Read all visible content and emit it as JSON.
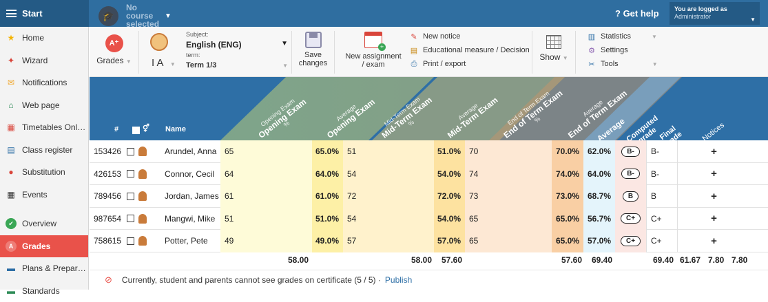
{
  "topbar": {
    "start_label": "Start",
    "course_label": "No course selected",
    "get_help": "Get help",
    "logged_in_label": "You are logged as",
    "logged_in_user": "Administrator"
  },
  "sidebar": {
    "items": [
      {
        "label": "Home",
        "icon": "star-icon",
        "color": "#f4b400"
      },
      {
        "label": "Wizard",
        "icon": "wizard-icon",
        "color": "#d9453b"
      },
      {
        "label": "Notifications",
        "icon": "envelope-icon",
        "color": "#f0a830"
      },
      {
        "label": "Web page",
        "icon": "home-icon",
        "color": "#2e8b57"
      },
      {
        "label": "Timetables Onl…",
        "icon": "timetable-icon",
        "color": "#d9453b"
      },
      {
        "label": "Class register",
        "icon": "register-icon",
        "color": "#2e6fa6"
      },
      {
        "label": "Substitution",
        "icon": "substitution-icon",
        "color": "#d9453b"
      },
      {
        "label": "Events",
        "icon": "calendar-icon",
        "color": "#333"
      },
      {
        "label": "Overview",
        "icon": "check-circle-icon",
        "color": "#3aa655"
      },
      {
        "label": "Grades",
        "icon": "grades-icon",
        "color": "#ffffff"
      },
      {
        "label": "Plans & Prepar…",
        "icon": "plans-icon",
        "color": "#2e6fa6"
      },
      {
        "label": "Standards",
        "icon": "standards-icon",
        "color": "#2e8b57"
      }
    ],
    "active_index": 9
  },
  "toolbar": {
    "grades_label": "Grades",
    "subject_caption": "Subject:",
    "subject_value": "English (ENG)",
    "class_value": "I A",
    "term_caption": "term:",
    "term_value": "Term 1/3",
    "save_label": "Save changes",
    "new_assignment_label": "New assignment / exam",
    "new_notice": "New notice",
    "educational_measure": "Educational measure / Decision",
    "print_export": "Print / export",
    "show_label": "Show",
    "statistics": "Statistics",
    "settings": "Settings",
    "tools": "Tools"
  },
  "columns": {
    "num": "#",
    "name": "Name",
    "opening": {
      "small": "Opening Exam",
      "big": "Opening Exam",
      "pct": "%"
    },
    "opening_avg": {
      "small": "Average",
      "big": "Opening Exam"
    },
    "midterm": {
      "small": "Mid-Term Exam",
      "big": "Mid-Term Exam",
      "pct": "%"
    },
    "midterm_avg": {
      "small": "Average",
      "big": "Mid-Term Exam"
    },
    "endterm": {
      "small": "End of Term Exam",
      "big": "End of Term Exam",
      "pct": "%"
    },
    "endterm_avg": {
      "small": "Average",
      "big": "End of Term Exam"
    },
    "average": "Average",
    "computed": "Computed grade",
    "final": "Final grade",
    "notices": "Notices"
  },
  "students": [
    {
      "id": "153426",
      "name": "Arundel, Anna",
      "opening": "65",
      "opening_avg": "65.0%",
      "midterm": "51",
      "midterm_avg": "51.0%",
      "endterm": "70",
      "endterm_avg": "70.0%",
      "average": "62.0%",
      "computed": "B-",
      "final": "B-"
    },
    {
      "id": "426153",
      "name": "Connor, Cecil",
      "opening": "64",
      "opening_avg": "64.0%",
      "midterm": "54",
      "midterm_avg": "54.0%",
      "endterm": "74",
      "endterm_avg": "74.0%",
      "average": "64.0%",
      "computed": "B-",
      "final": "B-"
    },
    {
      "id": "789456",
      "name": "Jordan, James",
      "opening": "61",
      "opening_avg": "61.0%",
      "midterm": "72",
      "midterm_avg": "72.0%",
      "endterm": "73",
      "endterm_avg": "73.0%",
      "average": "68.7%",
      "computed": "B",
      "final": "B"
    },
    {
      "id": "987654",
      "name": "Mangwi, Mike",
      "opening": "51",
      "opening_avg": "51.0%",
      "midterm": "54",
      "midterm_avg": "54.0%",
      "endterm": "65",
      "endterm_avg": "65.0%",
      "average": "56.7%",
      "computed": "C+",
      "final": "C+"
    },
    {
      "id": "758615",
      "name": "Potter, Pete",
      "opening": "49",
      "opening_avg": "49.0%",
      "midterm": "57",
      "midterm_avg": "57.0%",
      "endterm": "65",
      "endterm_avg": "65.0%",
      "average": "57.0%",
      "computed": "C+",
      "final": "C+"
    }
  ],
  "notice_plus": "+",
  "totals": [
    "58.00",
    "58.00",
    "57.60",
    "57.60",
    "69.40",
    "69.40",
    "61.67",
    "7.80",
    "7.80"
  ],
  "footer": {
    "notice": "Currently, student and parents cannot see grades on certificate (5 / 5) ·",
    "publish": "Publish"
  },
  "colors": {
    "topbar": "#2f6ea0",
    "header": "#2e6fa6",
    "active": "#e9524a",
    "opening_col": "#fefbd8",
    "opening_avg": "#fdf0a6",
    "midterm_col": "#fff2cc",
    "midterm_avg": "#fde2a0",
    "endterm_col": "#fde8d4",
    "endterm_avg": "#f9cfa4",
    "average_col": "#e4f4fb",
    "computed_col": "#fbe7e3"
  }
}
